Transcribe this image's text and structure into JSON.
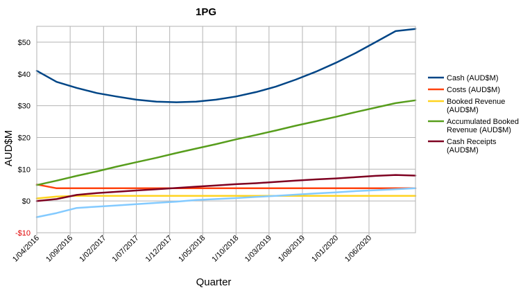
{
  "chart_data": {
    "type": "line",
    "title": "1PG",
    "xlabel": "Quarter",
    "ylabel": "AUD$M",
    "ylim": [
      -10,
      55
    ],
    "yticks": [
      -10,
      0,
      10,
      20,
      30,
      40,
      50
    ],
    "ytick_labels": [
      "-$10",
      "$0",
      "$10",
      "$20",
      "$30",
      "$40",
      "$50"
    ],
    "xlim": [
      "2016-04-01",
      "2020-12-31"
    ],
    "xtick_labels": [
      "1/04/2016",
      "1/09/2016",
      "1/02/2017",
      "1/07/2017",
      "1/12/2017",
      "1/05/2018",
      "1/10/2018",
      "1/03/2019",
      "1/08/2019",
      "1/01/2020",
      "1/06/2020"
    ],
    "xtick_dates": [
      "2016-04-01",
      "2016-09-01",
      "2017-02-01",
      "2017-07-01",
      "2017-12-01",
      "2018-05-01",
      "2018-10-01",
      "2019-03-01",
      "2019-08-01",
      "2020-01-01",
      "2020-06-01"
    ],
    "grid": true,
    "legend_position": "right",
    "x": [
      "2016-04-01",
      "2016-07-01",
      "2016-10-01",
      "2017-01-01",
      "2017-04-01",
      "2017-07-01",
      "2017-10-01",
      "2018-01-01",
      "2018-04-01",
      "2018-07-01",
      "2018-10-01",
      "2019-01-01",
      "2019-04-01",
      "2019-07-01",
      "2019-10-01",
      "2020-01-01",
      "2020-04-01",
      "2020-07-01",
      "2020-10-01",
      "2020-12-31"
    ],
    "series": [
      {
        "name": "Cash (AUD$M)",
        "color": "#004586",
        "values": [
          41.0,
          37.5,
          35.6,
          34.0,
          32.9,
          31.9,
          31.3,
          31.1,
          31.3,
          31.9,
          32.9,
          34.3,
          36.0,
          38.2,
          40.7,
          43.5,
          46.6,
          50.0,
          53.5,
          54.2
        ]
      },
      {
        "name": "Costs (AUD$M)",
        "color": "#ff420e",
        "values": [
          5.2,
          4.0,
          4.0,
          4.0,
          4.0,
          4.0,
          4.0,
          4.0,
          4.0,
          4.0,
          4.0,
          4.0,
          4.0,
          4.0,
          4.0,
          4.0,
          4.0,
          4.0,
          4.0,
          4.0
        ]
      },
      {
        "name": "Booked Revenue (AUD$M)",
        "color": "#ffd320",
        "values": [
          0.8,
          1.4,
          1.6,
          1.6,
          1.6,
          1.6,
          1.6,
          1.6,
          1.6,
          1.6,
          1.6,
          1.6,
          1.6,
          1.6,
          1.6,
          1.6,
          1.6,
          1.6,
          1.6,
          1.6
        ]
      },
      {
        "name": "Accumulated Booked Revenue (AUD$M)",
        "color": "#579d1c",
        "values": [
          5.0,
          6.4,
          7.9,
          9.3,
          10.8,
          12.2,
          13.6,
          15.1,
          16.5,
          17.9,
          19.4,
          20.8,
          22.2,
          23.7,
          25.1,
          26.5,
          28.0,
          29.4,
          30.8,
          31.7
        ]
      },
      {
        "name": "Cash Receipts (AUD$M)",
        "color": "#7e0021",
        "values": [
          0.0,
          0.6,
          1.9,
          2.5,
          2.9,
          3.3,
          3.7,
          4.1,
          4.5,
          4.9,
          5.3,
          5.6,
          6.0,
          6.4,
          6.8,
          7.1,
          7.5,
          7.9,
          8.2,
          8.0
        ]
      },
      {
        "name": "",
        "color": "#83caff",
        "values": [
          -5.1,
          -3.8,
          -2.2,
          -1.8,
          -1.4,
          -1.0,
          -0.6,
          -0.2,
          0.3,
          0.6,
          0.9,
          1.3,
          1.6,
          2.0,
          2.4,
          2.7,
          3.1,
          3.4,
          3.7,
          4.0
        ]
      }
    ]
  }
}
